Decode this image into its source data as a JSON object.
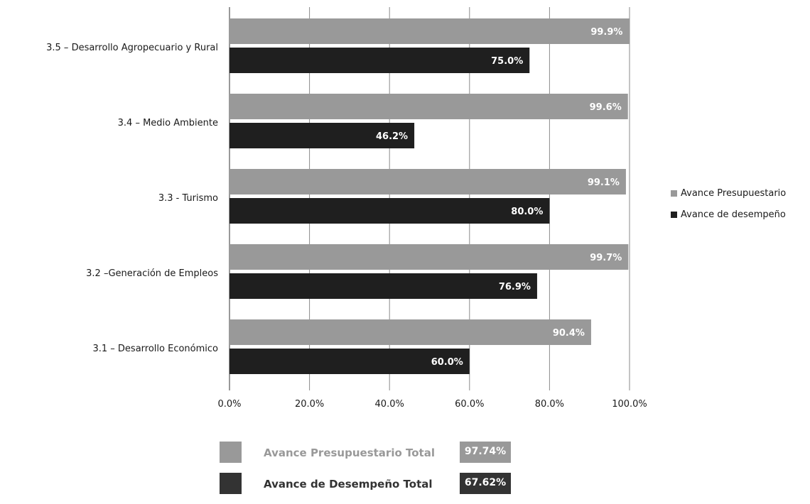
{
  "chart_data": {
    "type": "bar",
    "orientation": "horizontal",
    "categories": [
      "3.5 – Desarrollo Agropecuario y Rural",
      "3.4 – Medio Ambiente",
      "3.3 - Turismo",
      "3.2 –Generación de Empleos",
      "3.1 – Desarrollo Económico"
    ],
    "series": [
      {
        "name": "Avance Presupuestario",
        "values": [
          99.9,
          99.6,
          99.1,
          99.7,
          90.4
        ],
        "value_labels": [
          "99.9%",
          "99.6%",
          "99.1%",
          "99.7%",
          "90.4%"
        ],
        "color": "#999999"
      },
      {
        "name": "Avance de desempeño",
        "values": [
          75.0,
          46.2,
          80.0,
          76.9,
          60.0
        ],
        "value_labels": [
          "75.0%",
          "46.2%",
          "80.0%",
          "76.9%",
          "60.0%"
        ],
        "color": "#1f1f1f"
      }
    ],
    "xlim": [
      0,
      100
    ],
    "xticks": [
      0,
      20,
      40,
      60,
      80,
      100
    ],
    "xtick_labels": [
      "0.0%",
      "20.0%",
      "40.0%",
      "60.0%",
      "80.0%",
      "100.0%"
    ],
    "grid": "vertical",
    "legend_position": "right",
    "xlabel": "",
    "ylabel": "",
    "title": ""
  },
  "totals": [
    {
      "label": "Avance Presupuestario Total",
      "value": "97.74%",
      "color": "#999999"
    },
    {
      "label": "Avance de Desempeño Total",
      "value": "67.62%",
      "color": "#333333"
    }
  ]
}
